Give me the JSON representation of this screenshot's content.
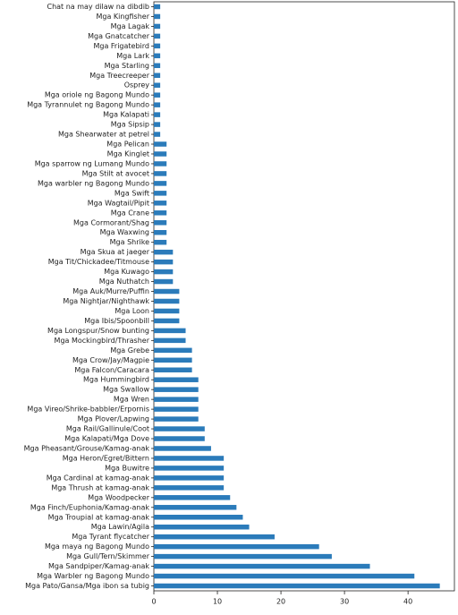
{
  "chart_data": {
    "type": "barh",
    "categories": [
      "Chat na may dilaw na dibdib",
      "Mga Kingfisher",
      "Mga Lagak",
      "Mga Gnatcatcher",
      "Mga Frigatebird",
      "Mga Lark",
      "Mga Starling",
      "Mga Treecreeper",
      "Osprey",
      "Mga oriole ng Bagong Mundo",
      "Mga Tyrannulet ng Bagong Mundo",
      "Mga Kalapati",
      "Mga Sipsip",
      "Mga Shearwater at petrel",
      "Mga Pelican",
      "Mga Kinglet",
      "Mga sparrow ng Lumang Mundo",
      "Mga Stilt at avocet",
      "Mga warbler ng Bagong Mundo",
      "Mga Swift",
      "Mga Wagtail/Pipit",
      "Mga Crane",
      "Mga Cormorant/Shag",
      "Mga Waxwing",
      "Mga Shrike",
      "Mga Skua at jaeger",
      "Mga Tit/Chickadee/Titmouse",
      "Mga Kuwago",
      "Mga Nuthatch",
      "Mga Auk/Murre/Puffin",
      "Mga Nightjar/Nighthawk",
      "Mga Loon",
      "Mga Ibis/Spoonbill",
      "Mga Longspur/Snow bunting",
      "Mga Mockingbird/Thrasher",
      "Mga Grebe",
      "Mga Crow/Jay/Magpie",
      "Mga Falcon/Caracara",
      "Mga Hummingbird",
      "Mga Swallow",
      "Mga Wren",
      "Mga Vireo/Shrike-babbler/Erpornis",
      "Mga Plover/Lapwing",
      "Mga Rail/Gallinule/Coot",
      "Mga Kalapati/Mga Dove",
      "Mga Pheasant/Grouse/Kamag-anak",
      "Mga Heron/Egret/Bittern",
      "Mga Buwitre",
      "Mga Cardinal at kamag-anak",
      "Mga Thrush at kamag-anak",
      "Mga Woodpecker",
      "Mga Finch/Euphonia/Kamag-anak",
      "Mga Troupial at kamag-anak",
      "Mga Lawin/Agila",
      "Mga Tyrant flycatcher",
      "Mga maya ng Bagong Mundo",
      "Mga Gull/Tern/Skimmer",
      "Mga Sandpiper/Kamag-anak",
      "Mga Warbler ng Bagong Mundo",
      "Mga Pato/Gansa/Mga ibon sa tubig"
    ],
    "values": [
      1,
      1,
      1,
      1,
      1,
      1,
      1,
      1,
      1,
      1,
      1,
      1,
      1,
      1,
      2,
      2,
      2,
      2,
      2,
      2,
      2,
      2,
      2,
      2,
      2,
      3,
      3,
      3,
      3,
      4,
      4,
      4,
      4,
      5,
      5,
      6,
      6,
      6,
      7,
      7,
      7,
      7,
      7,
      8,
      8,
      9,
      11,
      11,
      11,
      11,
      12,
      13,
      14,
      15,
      19,
      26,
      28,
      34,
      41,
      45
    ],
    "color": "#2b7bba",
    "xlim": [
      0,
      47.3
    ],
    "xticks": [
      0,
      10,
      20,
      30,
      40
    ]
  }
}
